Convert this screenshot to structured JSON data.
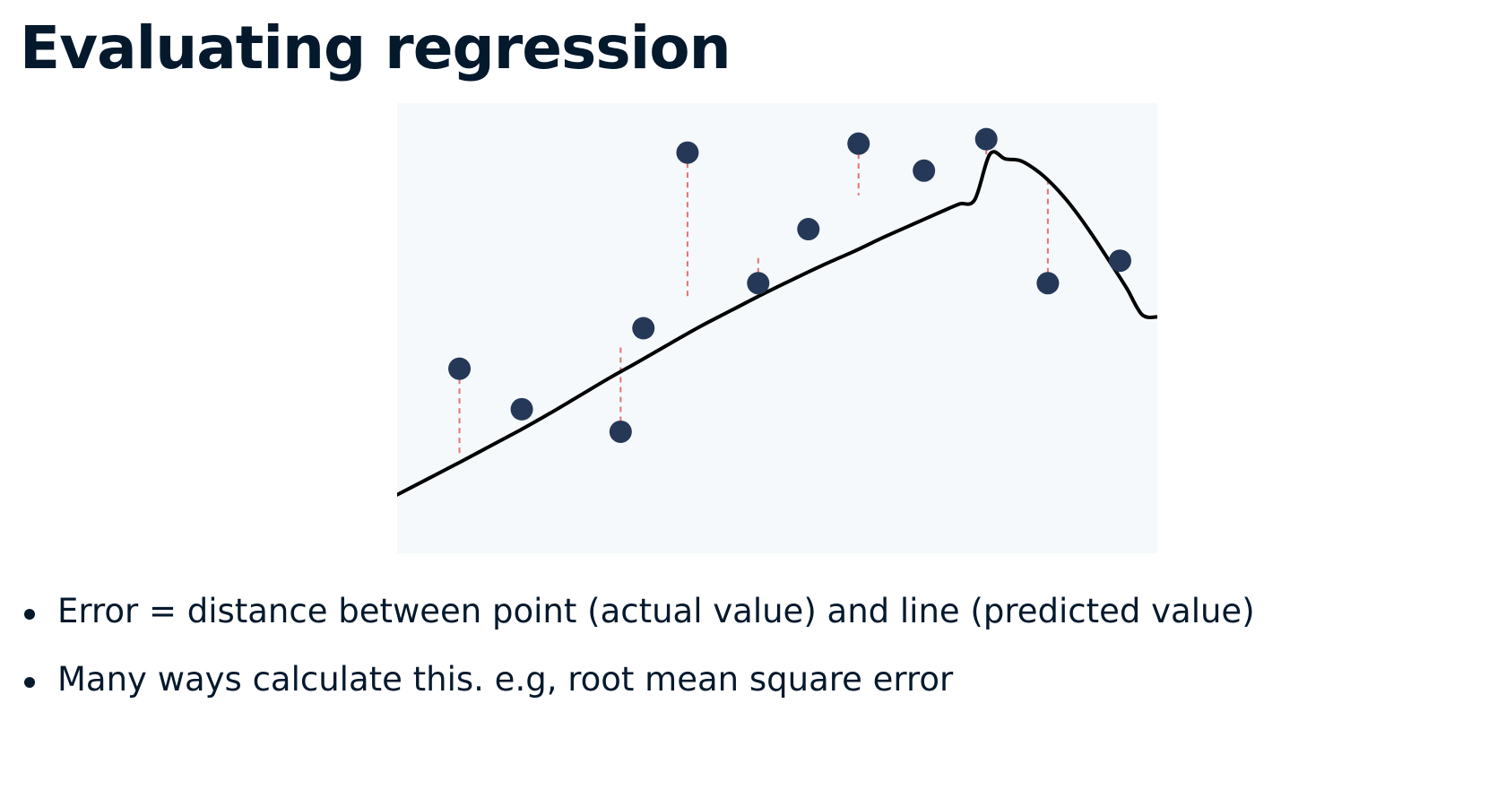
{
  "slide": {
    "title": "Evaluating regression",
    "bullets": [
      "Error = distance between point (actual value) and line (predicted value)",
      "Many ways calculate this. e.g, root mean square error"
    ]
  },
  "chart_data": {
    "type": "scatter",
    "title": "",
    "xlabel": "",
    "ylabel": "",
    "xlim": [
      0,
      100
    ],
    "ylim": [
      0,
      100
    ],
    "grid": false,
    "legend": "none",
    "axes_visible": false,
    "colors": {
      "background": "#f5f9fb",
      "points": "#253858",
      "fit_line": "#000000",
      "residuals": "#e57373"
    },
    "fit_line": {
      "x": [
        0,
        4,
        8,
        12,
        16,
        20,
        24,
        28,
        32,
        36,
        40,
        44,
        48,
        52,
        56,
        60,
        64,
        68,
        72,
        74,
        76,
        78,
        80,
        82,
        84,
        86,
        88,
        90,
        92,
        94,
        96,
        98,
        100
      ],
      "y": [
        13,
        16.5,
        20,
        23.6,
        27.2,
        31,
        35,
        39,
        42.8,
        46.7,
        50.5,
        54,
        57.5,
        60.8,
        64,
        67,
        70.2,
        73.2,
        76.2,
        77.6,
        78.6,
        88.7,
        87.6,
        87.2,
        85.2,
        82.3,
        78.6,
        74.2,
        69.3,
        64.1,
        58.8,
        53,
        52.5
      ]
    },
    "points": {
      "x": [
        8.2,
        16.4,
        29.4,
        32.4,
        38.2,
        47.5,
        54.1,
        60.7,
        69.3,
        77.5,
        85.6,
        95.1
      ],
      "y": [
        41,
        32,
        27,
        50,
        89,
        60,
        72,
        91,
        85,
        92,
        60,
        65
      ]
    },
    "residuals": [
      {
        "x": 8.2,
        "y_actual": 41,
        "y_pred": 21.5
      },
      {
        "x": 29.4,
        "y_actual": 27,
        "y_pred": 46.5
      },
      {
        "x": 38.2,
        "y_actual": 89,
        "y_pred": 57
      },
      {
        "x": 47.5,
        "y_actual": 60,
        "y_pred": 66
      },
      {
        "x": 60.7,
        "y_actual": 91,
        "y_pred": 79.5
      },
      {
        "x": 77.5,
        "y_actual": 92,
        "y_pred": 88.5
      },
      {
        "x": 85.6,
        "y_actual": 60,
        "y_pred": 82.5
      }
    ]
  }
}
